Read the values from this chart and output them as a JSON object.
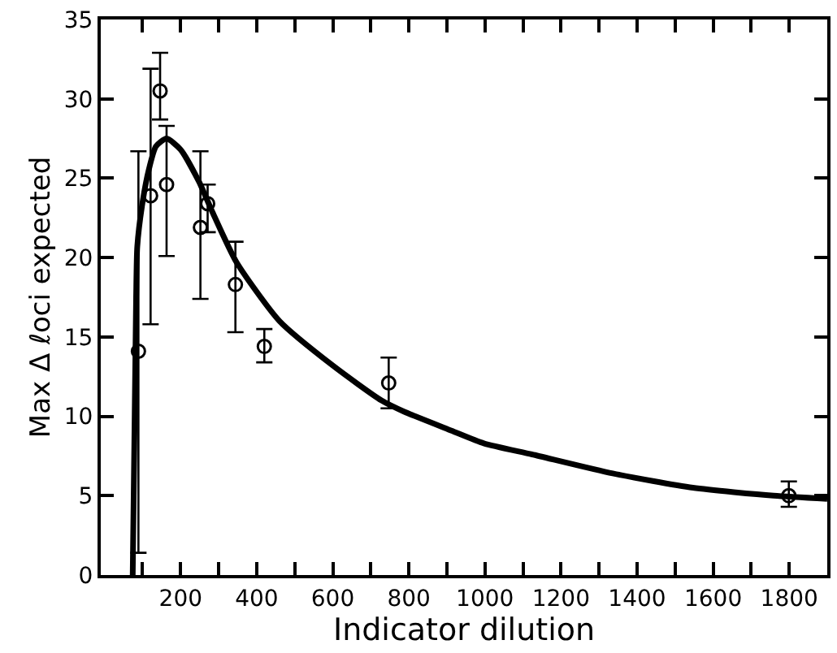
{
  "chart_data": {
    "type": "scatter",
    "xlabel": "Indicator dilution",
    "ylabel": "Max Δ ℓoci expected",
    "xlim": [
      -10,
      1900
    ],
    "ylim": [
      0,
      35
    ],
    "xticks": [
      {
        "value": 100,
        "label": null
      },
      200,
      {
        "value": 300,
        "label": null
      },
      400,
      {
        "value": 500,
        "label": null
      },
      600,
      {
        "value": 700,
        "label": null
      },
      800,
      {
        "value": 900,
        "label": null
      },
      1000,
      {
        "value": 1100,
        "label": null
      },
      1200,
      {
        "value": 1300,
        "label": null
      },
      1400,
      {
        "value": 1500,
        "label": null
      },
      1600,
      {
        "value": 1700,
        "label": null
      },
      1800
    ],
    "yticks": [
      0,
      5,
      10,
      15,
      20,
      25,
      30,
      35
    ],
    "series": [
      {
        "type": "line",
        "color": "#000000",
        "line_style": "solid",
        "marker": "none",
        "x": [
          74,
          83,
          86,
          100,
          117,
          135,
          163,
          200,
          248,
          283,
          347,
          460,
          600,
          728,
          787,
          912,
          997,
          1124,
          1336,
          1547,
          1759,
          1900
        ],
        "values": [
          0,
          17.5,
          20.7,
          23.5,
          25.6,
          27.0,
          27.5,
          26.8,
          24.8,
          22.9,
          19.7,
          16.0,
          13.2,
          11.0,
          10.3,
          9.1,
          8.3,
          7.6,
          6.4,
          5.5,
          5.0,
          4.8
        ]
      },
      {
        "color": "#000000",
        "marker": "circle",
        "x": [
          89,
          121,
          146,
          163,
          252,
          271,
          344,
          420,
          747,
          1799
        ],
        "values": [
          14.1,
          23.9,
          30.5,
          24.6,
          21.9,
          23.4,
          18.3,
          14.4,
          12.1,
          5.0
        ],
        "errors": [
          [
            1.4,
            26.7
          ],
          [
            15.8,
            31.9
          ],
          [
            28.7,
            32.9
          ],
          [
            20.1,
            28.3
          ],
          [
            17.4,
            26.7
          ],
          [
            21.6,
            24.6
          ],
          [
            15.3,
            21.0
          ],
          [
            13.4,
            15.5
          ],
          [
            10.5,
            13.7
          ],
          [
            4.3,
            5.9
          ]
        ]
      }
    ]
  }
}
